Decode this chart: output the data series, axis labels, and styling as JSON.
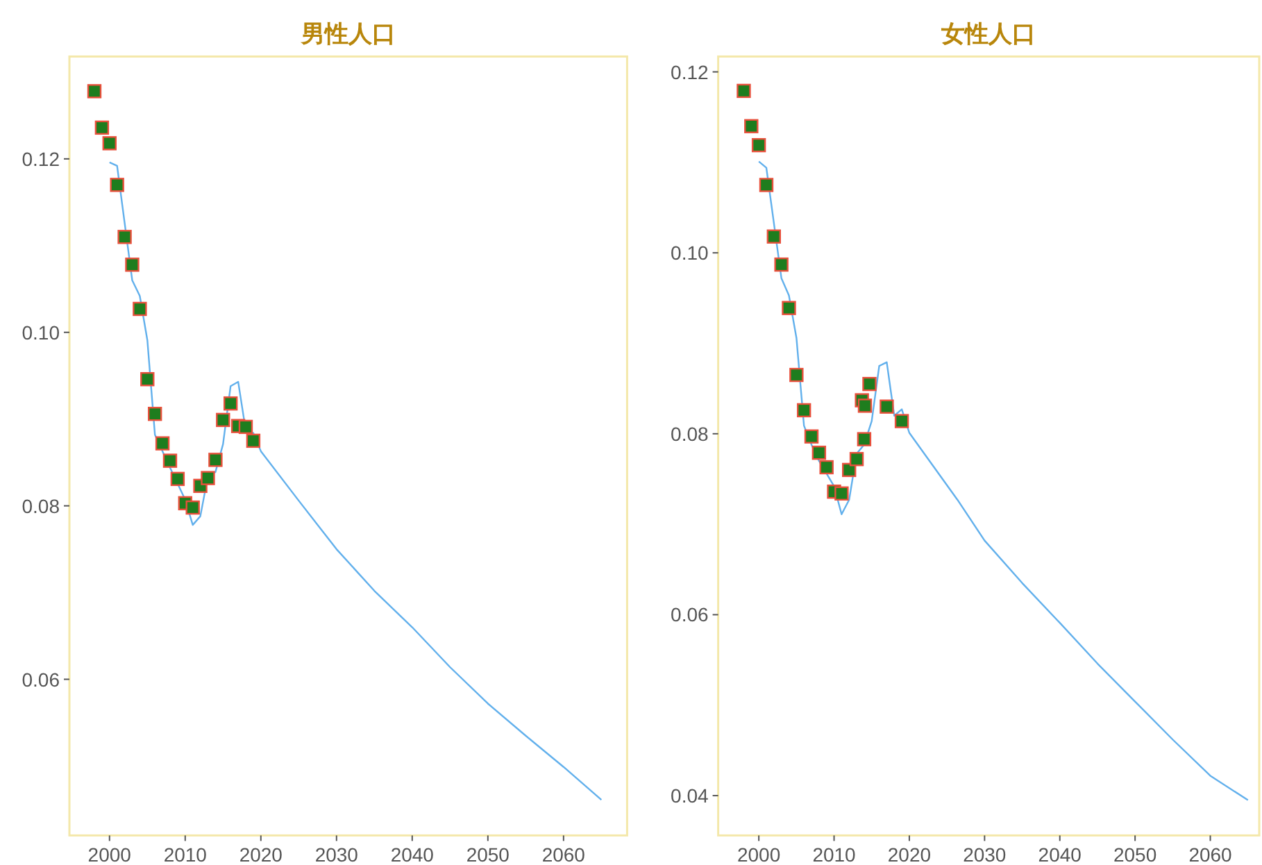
{
  "chart_data": [
    {
      "type": "scatter",
      "title": "男性人口",
      "xlim": [
        1994.7,
        2068.4
      ],
      "ylim": [
        0.042,
        0.1318
      ],
      "xticks": [
        2000,
        2010,
        2020,
        2030,
        2040,
        2050,
        2060
      ],
      "yticks": [
        0.06,
        0.08,
        {
          "value": 0.1,
          "label": "0.10"
        },
        0.12
      ],
      "grid": false,
      "series": [
        {
          "type": "scatter",
          "marker": "square",
          "color": "#1e7d1e",
          "x": [
            1998,
            1999,
            2000,
            2001,
            2002,
            2003,
            2004,
            2005,
            2006,
            2007,
            2008,
            2009,
            2010,
            2011,
            2012,
            2013,
            2014,
            2015,
            2016,
            2017,
            2018,
            2019
          ],
          "values": [
            0.1278,
            0.1236,
            0.1218,
            0.117,
            0.111,
            0.1078,
            0.1027,
            0.0946,
            0.0906,
            0.0872,
            0.0852,
            0.0831,
            0.0803,
            0.0798,
            0.0823,
            0.0832,
            0.0853,
            0.0899,
            0.0918,
            0.0892,
            0.0891,
            0.0875
          ]
        },
        {
          "type": "line",
          "marker": "none",
          "color": "#62b0ec",
          "x": [
            2000,
            2001,
            2003,
            2004,
            2005,
            2006,
            2008,
            2010,
            2011,
            2012,
            2013,
            2014,
            2015,
            2016,
            2017,
            2018,
            2019,
            2020,
            2025,
            2030,
            2035,
            2040,
            2045,
            2050,
            2055,
            2060,
            2065
          ],
          "values": [
            0.1196,
            0.1192,
            0.106,
            0.1042,
            0.0991,
            0.0882,
            0.0844,
            0.0807,
            0.0778,
            0.0788,
            0.0834,
            0.0839,
            0.0871,
            0.0938,
            0.0943,
            0.0887,
            0.0884,
            0.0863,
            0.0806,
            0.075,
            0.0702,
            0.066,
            0.0614,
            0.0572,
            0.0535,
            0.0499,
            0.0461
          ]
        }
      ]
    },
    {
      "type": "scatter",
      "title": "女性人口",
      "xlim": [
        1994.6,
        2066.5
      ],
      "ylim": [
        0.0356,
        0.1217
      ],
      "xticks": [
        2000,
        2010,
        2020,
        2030,
        2040,
        2050,
        2060
      ],
      "yticks": [
        0.04,
        0.06,
        0.08,
        {
          "value": 0.1,
          "label": "0.10"
        },
        0.12
      ],
      "grid": false,
      "series": [
        {
          "type": "scatter",
          "marker": "square",
          "color": "#1e7d1e",
          "x": [
            1998,
            1999,
            2000,
            2001,
            2002,
            2003,
            2004,
            2005,
            2006,
            2007,
            2008,
            2009,
            2010,
            2011,
            2012,
            2013,
            2013.7,
            2014.1,
            2014,
            2014.7,
            2017,
            2019
          ],
          "values": [
            0.1179,
            0.114,
            0.1119,
            0.1075,
            0.1018,
            0.0987,
            0.0939,
            0.0865,
            0.0826,
            0.0797,
            0.0779,
            0.0763,
            0.0736,
            0.0734,
            0.076,
            0.0772,
            0.0837,
            0.0831,
            0.0794,
            0.0855,
            0.083,
            0.0814
          ]
        },
        {
          "type": "line",
          "marker": "none",
          "color": "#62b0ec",
          "x": [
            2000,
            2001,
            2003,
            2004,
            2005,
            2006,
            2007,
            2008,
            2010,
            2011,
            2012,
            2013,
            2014,
            2015,
            2016,
            2017,
            2018,
            2019,
            2020,
            2026.4,
            2030,
            2035,
            2040,
            2045,
            2050,
            2055,
            2060,
            2065
          ],
          "values": [
            0.1101,
            0.1094,
            0.0972,
            0.0953,
            0.0906,
            0.0809,
            0.0788,
            0.077,
            0.0742,
            0.0711,
            0.0727,
            0.0778,
            0.0788,
            0.0814,
            0.0875,
            0.0879,
            0.082,
            0.0827,
            0.0801,
            0.0727,
            0.0682,
            0.0635,
            0.0591,
            0.0546,
            0.0504,
            0.0462,
            0.0422,
            0.0395
          ]
        }
      ]
    }
  ]
}
